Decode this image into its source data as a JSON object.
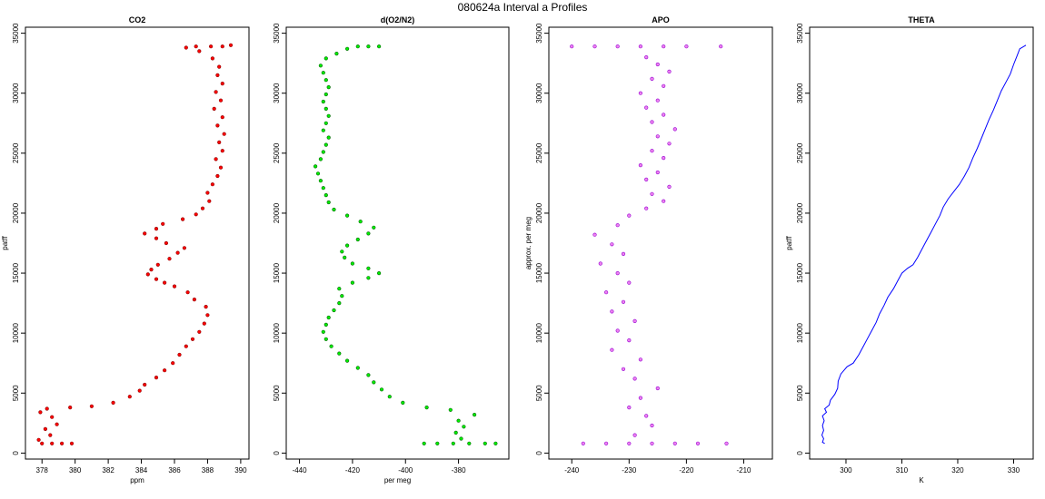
{
  "figure": {
    "title": "080624a   Interval a Profiles"
  },
  "chart_data": [
    {
      "type": "scatter",
      "title": "CO2",
      "xlabel": "ppm",
      "ylabel": "patff",
      "xlim": [
        377,
        390.5
      ],
      "ylim": [
        -500,
        35500
      ],
      "xticks": [
        378,
        380,
        382,
        384,
        386,
        388,
        390
      ],
      "yticks": [
        0,
        5000,
        10000,
        15000,
        20000,
        25000,
        30000,
        35000
      ],
      "color": "#ff0000",
      "edge_color": "#8b0000",
      "points": [
        [
          378.0,
          800
        ],
        [
          378.6,
          800
        ],
        [
          379.2,
          800
        ],
        [
          379.8,
          800
        ],
        [
          377.8,
          1100
        ],
        [
          378.5,
          1500
        ],
        [
          378.2,
          2000
        ],
        [
          378.9,
          2400
        ],
        [
          378.6,
          3000
        ],
        [
          377.9,
          3400
        ],
        [
          378.3,
          3700
        ],
        [
          379.7,
          3800
        ],
        [
          381.0,
          3900
        ],
        [
          382.3,
          4200
        ],
        [
          383.3,
          4700
        ],
        [
          383.9,
          5200
        ],
        [
          384.2,
          5700
        ],
        [
          384.9,
          6300
        ],
        [
          385.4,
          6900
        ],
        [
          385.9,
          7500
        ],
        [
          386.3,
          8200
        ],
        [
          386.7,
          8900
        ],
        [
          387.1,
          9500
        ],
        [
          387.5,
          10100
        ],
        [
          387.8,
          10800
        ],
        [
          388.0,
          11500
        ],
        [
          387.9,
          12200
        ],
        [
          387.2,
          12800
        ],
        [
          386.8,
          13400
        ],
        [
          386.0,
          13900
        ],
        [
          385.4,
          14200
        ],
        [
          384.9,
          14500
        ],
        [
          384.4,
          14900
        ],
        [
          384.6,
          15300
        ],
        [
          385.0,
          15700
        ],
        [
          385.7,
          16200
        ],
        [
          386.2,
          16700
        ],
        [
          386.6,
          17100
        ],
        [
          385.5,
          17500
        ],
        [
          384.9,
          17900
        ],
        [
          384.2,
          18300
        ],
        [
          384.9,
          18700
        ],
        [
          385.3,
          19100
        ],
        [
          386.5,
          19500
        ],
        [
          387.3,
          19900
        ],
        [
          387.7,
          20400
        ],
        [
          388.1,
          21000
        ],
        [
          388.0,
          21700
        ],
        [
          388.3,
          22400
        ],
        [
          388.6,
          23100
        ],
        [
          388.8,
          23800
        ],
        [
          388.5,
          24500
        ],
        [
          388.9,
          25200
        ],
        [
          388.7,
          25900
        ],
        [
          389.0,
          26600
        ],
        [
          388.6,
          27300
        ],
        [
          388.9,
          28000
        ],
        [
          388.4,
          28700
        ],
        [
          388.8,
          29400
        ],
        [
          388.5,
          30100
        ],
        [
          388.9,
          30800
        ],
        [
          388.6,
          31500
        ],
        [
          388.7,
          32200
        ],
        [
          388.3,
          32900
        ],
        [
          387.5,
          33500
        ],
        [
          386.7,
          33800
        ],
        [
          387.3,
          33900
        ],
        [
          388.2,
          33900
        ],
        [
          388.9,
          33900
        ],
        [
          389.4,
          34000
        ]
      ]
    },
    {
      "type": "scatter",
      "title": "d(O2/N2)",
      "xlabel": "per meg",
      "ylabel": "",
      "xlim": [
        -445,
        -361
      ],
      "ylim": [
        -500,
        35500
      ],
      "xticks": [
        -440,
        -420,
        -400,
        -380
      ],
      "yticks": [
        0,
        5000,
        10000,
        15000,
        20000,
        25000,
        30000,
        35000
      ],
      "color": "#00ee00",
      "edge_color": "#006400",
      "points": [
        [
          -393,
          800
        ],
        [
          -388,
          800
        ],
        [
          -382,
          800
        ],
        [
          -376,
          800
        ],
        [
          -370,
          800
        ],
        [
          -366,
          800
        ],
        [
          -379,
          1200
        ],
        [
          -381,
          1700
        ],
        [
          -378,
          2200
        ],
        [
          -380,
          2700
        ],
        [
          -374,
          3200
        ],
        [
          -383,
          3600
        ],
        [
          -392,
          3800
        ],
        [
          -401,
          4200
        ],
        [
          -406,
          4700
        ],
        [
          -409,
          5300
        ],
        [
          -412,
          5900
        ],
        [
          -414,
          6500
        ],
        [
          -418,
          7100
        ],
        [
          -422,
          7700
        ],
        [
          -425,
          8300
        ],
        [
          -428,
          8900
        ],
        [
          -430,
          9500
        ],
        [
          -431,
          10100
        ],
        [
          -430,
          10700
        ],
        [
          -429,
          11300
        ],
        [
          -427,
          11900
        ],
        [
          -425,
          12500
        ],
        [
          -424,
          13100
        ],
        [
          -425,
          13700
        ],
        [
          -420,
          14200
        ],
        [
          -414,
          14600
        ],
        [
          -410,
          15000
        ],
        [
          -414,
          15400
        ],
        [
          -420,
          15800
        ],
        [
          -423,
          16300
        ],
        [
          -424,
          16800
        ],
        [
          -422,
          17300
        ],
        [
          -418,
          17800
        ],
        [
          -414,
          18300
        ],
        [
          -412,
          18800
        ],
        [
          -417,
          19300
        ],
        [
          -422,
          19800
        ],
        [
          -427,
          20300
        ],
        [
          -429,
          20900
        ],
        [
          -430,
          21500
        ],
        [
          -431,
          22100
        ],
        [
          -432,
          22700
        ],
        [
          -433,
          23300
        ],
        [
          -434,
          23900
        ],
        [
          -432,
          24500
        ],
        [
          -431,
          25100
        ],
        [
          -430,
          25700
        ],
        [
          -429,
          26300
        ],
        [
          -431,
          26900
        ],
        [
          -430,
          27500
        ],
        [
          -429,
          28100
        ],
        [
          -430,
          28700
        ],
        [
          -431,
          29300
        ],
        [
          -430,
          29900
        ],
        [
          -429,
          30500
        ],
        [
          -430,
          31100
        ],
        [
          -431,
          31700
        ],
        [
          -432,
          32300
        ],
        [
          -430,
          32900
        ],
        [
          -426,
          33300
        ],
        [
          -422,
          33700
        ],
        [
          -418,
          33900
        ],
        [
          -414,
          33900
        ],
        [
          -410,
          33900
        ]
      ]
    },
    {
      "type": "scatter",
      "title": "APO",
      "xlabel": "",
      "ylabel": "approx. per meg",
      "xlim": [
        -244,
        -205
      ],
      "ylim": [
        -500,
        35500
      ],
      "xticks": [
        -240,
        -230,
        -220,
        -210
      ],
      "yticks": [
        0,
        5000,
        10000,
        15000,
        20000,
        25000,
        30000,
        35000
      ],
      "color": "#ee82ee",
      "edge_color": "#9400d3",
      "points": [
        [
          -238,
          800
        ],
        [
          -234,
          800
        ],
        [
          -230,
          800
        ],
        [
          -226,
          800
        ],
        [
          -222,
          800
        ],
        [
          -218,
          800
        ],
        [
          -213,
          800
        ],
        [
          -229,
          1500
        ],
        [
          -226,
          2300
        ],
        [
          -227,
          3100
        ],
        [
          -230,
          3800
        ],
        [
          -228,
          4600
        ],
        [
          -225,
          5400
        ],
        [
          -229,
          6200
        ],
        [
          -231,
          7000
        ],
        [
          -228,
          7800
        ],
        [
          -233,
          8600
        ],
        [
          -230,
          9400
        ],
        [
          -232,
          10200
        ],
        [
          -229,
          11000
        ],
        [
          -233,
          11800
        ],
        [
          -231,
          12600
        ],
        [
          -234,
          13400
        ],
        [
          -230,
          14200
        ],
        [
          -232,
          15000
        ],
        [
          -235,
          15800
        ],
        [
          -231,
          16600
        ],
        [
          -233,
          17400
        ],
        [
          -236,
          18200
        ],
        [
          -232,
          19000
        ],
        [
          -230,
          19800
        ],
        [
          -227,
          20400
        ],
        [
          -224,
          21000
        ],
        [
          -226,
          21600
        ],
        [
          -223,
          22200
        ],
        [
          -227,
          22800
        ],
        [
          -225,
          23400
        ],
        [
          -228,
          24000
        ],
        [
          -224,
          24600
        ],
        [
          -226,
          25200
        ],
        [
          -223,
          25800
        ],
        [
          -225,
          26400
        ],
        [
          -222,
          27000
        ],
        [
          -226,
          27600
        ],
        [
          -224,
          28200
        ],
        [
          -227,
          28800
        ],
        [
          -225,
          29400
        ],
        [
          -228,
          30000
        ],
        [
          -224,
          30600
        ],
        [
          -226,
          31200
        ],
        [
          -223,
          31800
        ],
        [
          -225,
          32400
        ],
        [
          -227,
          33000
        ],
        [
          -240,
          33900
        ],
        [
          -236,
          33900
        ],
        [
          -232,
          33900
        ],
        [
          -228,
          33900
        ],
        [
          -224,
          33900
        ],
        [
          -220,
          33900
        ],
        [
          -214,
          33900
        ]
      ]
    },
    {
      "type": "line",
      "title": "THETA",
      "xlabel": "K",
      "ylabel": "patff",
      "xlim": [
        293.5,
        333.5
      ],
      "ylim": [
        -500,
        35500
      ],
      "xticks": [
        300,
        310,
        320,
        330
      ],
      "yticks": [
        0,
        5000,
        10000,
        15000,
        20000,
        25000,
        30000,
        35000
      ],
      "color": "#0000ff",
      "points": [
        [
          296.2,
          800
        ],
        [
          295.8,
          900
        ],
        [
          296.0,
          1200
        ],
        [
          295.7,
          1500
        ],
        [
          296.0,
          1900
        ],
        [
          295.8,
          2300
        ],
        [
          296.1,
          2700
        ],
        [
          295.8,
          3100
        ],
        [
          296.5,
          3400
        ],
        [
          296.2,
          3700
        ],
        [
          297.0,
          4000
        ],
        [
          297.2,
          4400
        ],
        [
          298.0,
          4900
        ],
        [
          298.5,
          5400
        ],
        [
          298.6,
          6000
        ],
        [
          299.1,
          6600
        ],
        [
          300.2,
          7200
        ],
        [
          301.3,
          7500
        ],
        [
          302.3,
          8200
        ],
        [
          303.0,
          8800
        ],
        [
          303.8,
          9500
        ],
        [
          304.6,
          10200
        ],
        [
          305.4,
          10900
        ],
        [
          306.0,
          11600
        ],
        [
          306.8,
          12300
        ],
        [
          307.5,
          13000
        ],
        [
          308.5,
          13700
        ],
        [
          309.3,
          14400
        ],
        [
          310.0,
          15000
        ],
        [
          311.0,
          15400
        ],
        [
          312.0,
          15700
        ],
        [
          312.8,
          16300
        ],
        [
          313.6,
          17000
        ],
        [
          314.4,
          17700
        ],
        [
          315.2,
          18400
        ],
        [
          316.0,
          19100
        ],
        [
          316.8,
          19800
        ],
        [
          317.4,
          20500
        ],
        [
          318.3,
          21200
        ],
        [
          319.3,
          21800
        ],
        [
          320.3,
          22400
        ],
        [
          321.2,
          23100
        ],
        [
          322.0,
          23800
        ],
        [
          322.7,
          24600
        ],
        [
          323.5,
          25400
        ],
        [
          324.2,
          26200
        ],
        [
          324.9,
          27000
        ],
        [
          325.6,
          27800
        ],
        [
          326.4,
          28600
        ],
        [
          327.1,
          29400
        ],
        [
          327.8,
          30200
        ],
        [
          328.6,
          30900
        ],
        [
          329.4,
          31600
        ],
        [
          330.0,
          32400
        ],
        [
          330.6,
          33100
        ],
        [
          331.1,
          33700
        ],
        [
          332.2,
          34000
        ]
      ]
    }
  ]
}
